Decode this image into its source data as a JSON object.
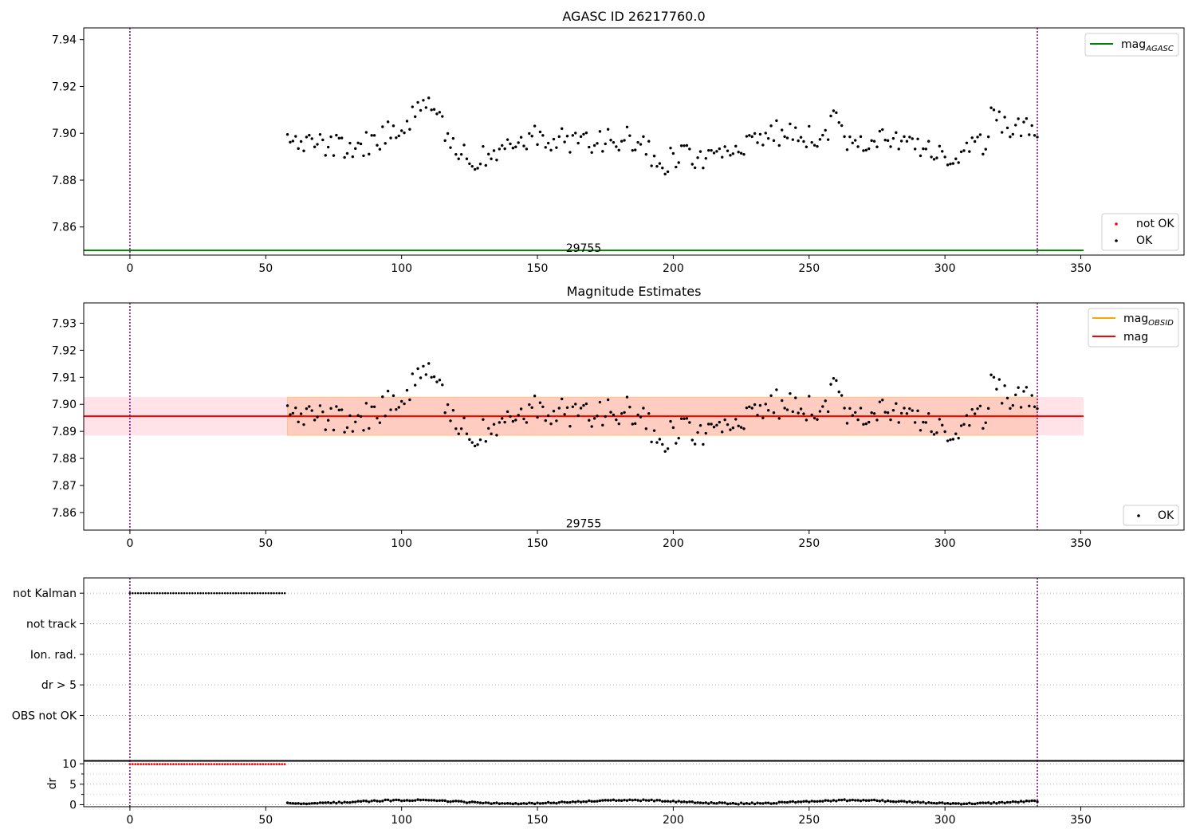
{
  "colors": {
    "agasc_line": "#008000",
    "obsid_line": "#ffa500",
    "mag_line": "#ff0000",
    "band_outer": "#ffc0cb",
    "band_inner": "#ffa07a",
    "points_ok": "#000000",
    "points_not_ok": "#ff0000",
    "vline": "#800080",
    "grid": "#b0b0b0"
  },
  "chart_data": [
    {
      "type": "scatter",
      "title": "AGASC ID 26217760.0",
      "xlim": [
        -17,
        388
      ],
      "ylim": [
        7.848,
        7.945
      ],
      "xticks": [
        0,
        50,
        100,
        150,
        200,
        250,
        300,
        350
      ],
      "yticks": [
        7.86,
        7.88,
        7.9,
        7.92,
        7.94
      ],
      "ytick_labels": [
        "7.86",
        "7.88",
        "7.90",
        "7.92",
        "7.94"
      ],
      "vlines": [
        0,
        334
      ],
      "annotation": {
        "text": "29755",
        "x": 167,
        "y": 7.85
      },
      "hlines": [
        {
          "name": "mag_AGASC",
          "label_base": "mag",
          "label_sub": "AGASC",
          "y": 7.85,
          "xmin": -17,
          "xmax": 351,
          "color": "#008000"
        }
      ],
      "legend_lines_loc": "upper right",
      "legend_points_loc": "lower right",
      "series": [
        {
          "name": "not OK",
          "color": "#ff0000",
          "x": [],
          "y": []
        },
        {
          "name": "OK",
          "color": "#000000",
          "x": [],
          "y": []
        }
      ]
    },
    {
      "type": "scatter",
      "title": "Magnitude Estimates",
      "xlim": [
        -17,
        388
      ],
      "ylim": [
        7.8535,
        7.9375
      ],
      "xticks": [
        0,
        50,
        100,
        150,
        200,
        250,
        300,
        350
      ],
      "yticks": [
        7.86,
        7.87,
        7.88,
        7.89,
        7.9,
        7.91,
        7.92,
        7.93
      ],
      "ytick_labels": [
        "7.86",
        "7.87",
        "7.88",
        "7.89",
        "7.90",
        "7.91",
        "7.92",
        "7.93"
      ],
      "vlines": [
        0,
        334
      ],
      "annotation": {
        "text": "29755",
        "x": 167,
        "y": 7.856
      },
      "bands": [
        {
          "y0": 7.8885,
          "y1": 7.9027,
          "xmin": -17,
          "xmax": 351,
          "color": "#ffc0cb"
        },
        {
          "y0": 7.8885,
          "y1": 7.9027,
          "xmin": 58,
          "xmax": 334,
          "color": "#ffa07a"
        }
      ],
      "hlines": [
        {
          "name": "mag_OBSID",
          "label_base": "mag",
          "label_sub": "OBSID",
          "y": 7.8956,
          "xmin": 58,
          "xmax": 334,
          "color": "#ffa500"
        },
        {
          "name": "mag",
          "label_base": "mag",
          "label_sub": "",
          "y": 7.8956,
          "xmin": -17,
          "xmax": 351,
          "color": "#ff0000"
        }
      ],
      "legend_lines_loc": "upper right",
      "legend_points_loc": "lower right",
      "series": [
        {
          "name": "OK",
          "color": "#000000",
          "x": [],
          "y": []
        }
      ]
    },
    {
      "type": "scatter",
      "xlim": [
        -17,
        388
      ],
      "ylim": [
        -0.5,
        5.5
      ],
      "categories": [
        "not Kalman",
        "not track",
        "Ion. rad.",
        "dr > 5",
        "OBS not OK"
      ],
      "grid": true,
      "vlines": [
        0,
        334
      ],
      "flag_ranges": [
        {
          "category": "not Kalman",
          "x0": 0,
          "x1": 57
        }
      ]
    },
    {
      "type": "scatter",
      "ylabel": "dr",
      "xlim": [
        -17,
        388
      ],
      "ylim": [
        -0.5,
        10.8
      ],
      "xticks": [
        0,
        50,
        100,
        150,
        200,
        250,
        300,
        350
      ],
      "yticks": [
        0,
        5,
        10
      ],
      "ytick_labels": [
        "0",
        "5",
        "10"
      ],
      "grid": true,
      "vlines": [
        0,
        334
      ],
      "series": [
        {
          "name": "not OK",
          "color": "#ff0000",
          "x0": 0,
          "x1": 57,
          "value": 9.9
        },
        {
          "name": "OK",
          "color": "#000000",
          "x": [],
          "y": []
        }
      ]
    }
  ]
}
